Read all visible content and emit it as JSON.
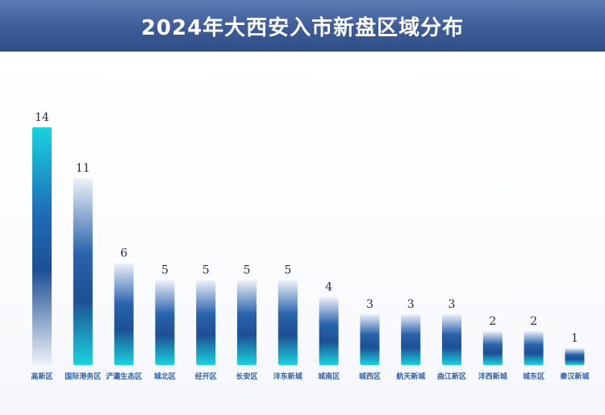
{
  "title": "2024年大西安入市新盘区域分布",
  "chart_data": {
    "type": "bar",
    "title": "2024年大西安入市新盘区域分布",
    "categories": [
      "高新区",
      "国际港务区",
      "浐灞生态区",
      "城北区",
      "经开区",
      "长安区",
      "沣东新城",
      "城南区",
      "城西区",
      "航天新城",
      "曲江新区",
      "沣西新城",
      "城东区",
      "秦汉新城"
    ],
    "values": [
      14,
      11,
      6,
      5,
      5,
      5,
      5,
      4,
      3,
      3,
      3,
      2,
      2,
      1
    ],
    "ylim": [
      0,
      14
    ],
    "xlabel": "",
    "ylabel": "",
    "grid": false,
    "colors": {
      "bar_dark": "#1f5aa8",
      "bar_light": "#e9eef7",
      "bar_cyan": "#19d3e0"
    }
  }
}
